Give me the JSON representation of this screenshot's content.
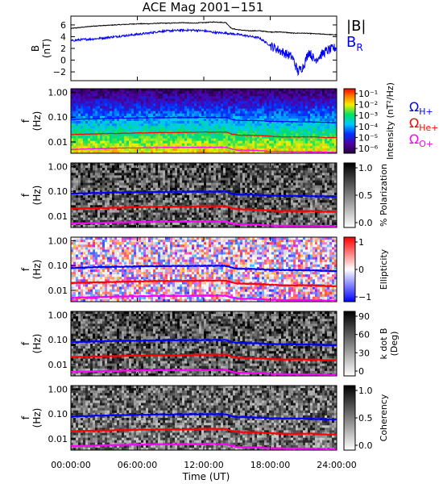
{
  "figure_title": "ACE Mag 2001−151",
  "colors": {
    "bmag": "#000000",
    "br": "#0000ff",
    "h_plus": "#0000ff",
    "he_plus": "#ff0000",
    "o_plus": "#ff00ff"
  },
  "line_labels": {
    "bmag": "|B|",
    "br_main": "B",
    "br_sub": "R",
    "omega": "Ω",
    "h_sub": "H+",
    "he_sub": "He+",
    "o_sub": "O+"
  },
  "x_axis": {
    "label": "Time (UT)",
    "ticks": [
      "00:00:00",
      "06:00:00",
      "12:00:00",
      "18:00:00",
      "24:00:00"
    ],
    "range_hours": [
      0,
      24
    ]
  },
  "chart_data": [
    {
      "type": "line",
      "panel": "field",
      "ylabel_main": "B",
      "ylabel_unit": "(nT)",
      "ylim": [
        -3.5,
        7.5
      ],
      "yticks": [
        "6",
        "4",
        "2",
        "0",
        "−2"
      ],
      "ytick_values": [
        6,
        4,
        2,
        0,
        -2
      ],
      "series": [
        {
          "name": "|B|",
          "x": [
            0,
            1,
            2,
            3,
            4,
            5,
            6,
            7,
            8,
            9,
            10,
            11,
            12,
            13,
            14,
            14.5,
            15,
            16,
            17,
            18,
            19,
            20,
            21,
            22,
            23,
            24
          ],
          "y": [
            5.4,
            5.6,
            5.8,
            5.9,
            6.0,
            6.1,
            6.2,
            6.2,
            6.3,
            6.3,
            6.4,
            6.3,
            6.4,
            6.5,
            6.4,
            5.4,
            5.2,
            5.0,
            5.0,
            4.8,
            4.8,
            4.6,
            4.6,
            4.5,
            4.4,
            4.3
          ]
        },
        {
          "name": "B_R",
          "x": [
            0,
            1,
            2,
            3,
            4,
            5,
            6,
            7,
            8,
            9,
            10,
            11,
            12,
            13,
            14,
            15,
            16,
            17,
            18,
            19,
            20,
            20.5,
            21,
            21.5,
            22,
            23,
            24
          ],
          "y": [
            3.3,
            3.5,
            3.6,
            3.8,
            4.0,
            4.2,
            4.4,
            4.6,
            4.9,
            5.0,
            5.1,
            5.1,
            5.0,
            4.7,
            4.6,
            4.4,
            4.1,
            3.8,
            2.5,
            1.5,
            0.5,
            -2.0,
            -1.0,
            1.5,
            0.0,
            1.5,
            2.2
          ]
        }
      ]
    },
    {
      "type": "heatmap",
      "panel": "intensity",
      "ylabel_main": "f",
      "ylabel_unit": "(Hz)",
      "yticks": [
        "1.00",
        "0.10",
        "0.01"
      ],
      "colorbar_label": "Intensity (nT²/Hz)",
      "colorbar_ticks": [
        "10⁻¹",
        "10⁻²",
        "10⁻³",
        "10⁻⁴",
        "10⁻⁵",
        "10⁻⁶"
      ],
      "colormap": "rainbow"
    },
    {
      "type": "heatmap",
      "panel": "polarization",
      "ylabel_main": "f",
      "ylabel_unit": "(Hz)",
      "yticks": [
        "1.00",
        "0.10",
        "0.01"
      ],
      "colorbar_label": "% Polarization",
      "colorbar_ticks": [
        "1.0",
        "0.5",
        "0.0"
      ],
      "colormap": "gray"
    },
    {
      "type": "heatmap",
      "panel": "ellipticity",
      "ylabel_main": "f",
      "ylabel_unit": "(Hz)",
      "yticks": [
        "1.00",
        "0.10",
        "0.01"
      ],
      "colorbar_label": "Ellipticity",
      "colorbar_ticks": [
        "1",
        "0",
        "−1"
      ],
      "colormap": "blue-white-red"
    },
    {
      "type": "heatmap",
      "panel": "k_dot_b",
      "ylabel_main": "f",
      "ylabel_unit": "(Hz)",
      "yticks": [
        "1.00",
        "0.10",
        "0.01"
      ],
      "colorbar_label": "k dot B",
      "colorbar_label_2": "(Deg)",
      "colorbar_ticks": [
        "90",
        "60",
        "30",
        "0"
      ],
      "colormap": "gray"
    },
    {
      "type": "heatmap",
      "panel": "coherency",
      "ylabel_main": "f",
      "ylabel_unit": "(Hz)",
      "yticks": [
        "1.00",
        "0.10",
        "0.01"
      ],
      "colorbar_label": "Coherency",
      "colorbar_ticks": [
        "1.0",
        "0.5",
        "0.0"
      ],
      "colormap": "gray"
    }
  ],
  "gyrofrequency_lines": {
    "x": [
      0,
      2,
      4,
      6,
      8,
      10,
      12,
      14,
      14.5,
      15,
      17,
      18,
      19,
      20,
      21,
      22,
      23,
      24
    ],
    "h_plus_hz": [
      0.08,
      0.085,
      0.09,
      0.093,
      0.095,
      0.097,
      0.098,
      0.098,
      0.082,
      0.075,
      0.072,
      0.068,
      0.066,
      0.066,
      0.065,
      0.064,
      0.062,
      0.06
    ],
    "he_plus_hz": [
      0.02,
      0.021,
      0.022,
      0.023,
      0.024,
      0.024,
      0.025,
      0.025,
      0.021,
      0.019,
      0.018,
      0.017,
      0.016,
      0.016,
      0.016,
      0.016,
      0.015,
      0.015
    ],
    "o_plus_hz": [
      0.005,
      0.0053,
      0.0056,
      0.0058,
      0.006,
      0.006,
      0.0061,
      0.0061,
      0.0052,
      0.0047,
      0.0045,
      0.0042,
      0.0041,
      0.0041,
      0.004,
      0.004,
      0.0039,
      0.0038
    ]
  }
}
